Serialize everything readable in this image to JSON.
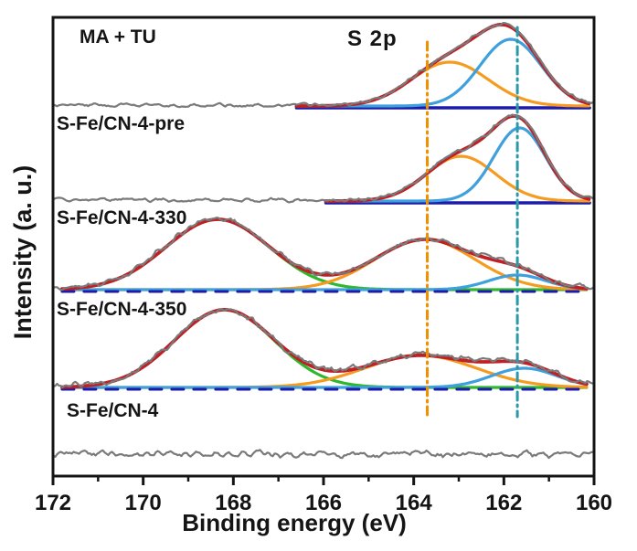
{
  "chart_data": {
    "type": "line",
    "title": "S 2p",
    "xlabel": "Binding energy (eV)",
    "ylabel": "Intensity (a. u.)",
    "x_axis": {
      "min": 160,
      "max": 172,
      "reversed": true,
      "unit": "eV",
      "major_ticks": [
        172,
        170,
        168,
        166,
        164,
        162,
        160
      ],
      "minor_ticks": [
        171,
        169,
        167,
        165,
        163,
        161
      ]
    },
    "y_axis": {
      "ticks": "none",
      "units": "arbitrary"
    },
    "guides": [
      {
        "position_ev": 163.7,
        "color": "#f09000",
        "style": "dash-dot",
        "y_top": 46,
        "y_bottom": 456
      },
      {
        "position_ev": 161.7,
        "color": "#2a9aa8",
        "style": "dash-dot",
        "y_top": 30,
        "y_bottom": 456
      }
    ],
    "palette": {
      "raw_data": "#7a7a7a",
      "fit_envelope": "#bf2026",
      "component_a": "#f59b20",
      "component_b": "#3ea0dc",
      "component_c": "#2eb82e",
      "baseline": "#1c1ca8",
      "frame": "#141414"
    },
    "series": [
      {
        "label": "MA + TU",
        "baseline_y": 117,
        "noise_amp": 2.0,
        "noise_seed": 7,
        "fit_range_ev": [
          166.6,
          160.1
        ],
        "baseline_style": "solid",
        "components": [
          {
            "role": "component_a",
            "center_ev": 163.2,
            "height": 48,
            "fwhm_ev": 2.0
          },
          {
            "role": "component_b",
            "center_ev": 161.85,
            "height": 73,
            "fwhm_ev": 1.6
          }
        ]
      },
      {
        "label": "S-Fe/CN-4-pre",
        "baseline_y": 221,
        "noise_amp": 2.0,
        "noise_seed": 13,
        "fit_range_ev": [
          165.95,
          160.1
        ],
        "baseline_style": "solid",
        "components": [
          {
            "role": "component_a",
            "center_ev": 162.95,
            "height": 49,
            "fwhm_ev": 1.8
          },
          {
            "role": "component_b",
            "center_ev": 161.65,
            "height": 80,
            "fwhm_ev": 1.35
          }
        ]
      },
      {
        "label": "S-Fe/CN-4-330",
        "baseline_y": 318,
        "noise_amp": 3.2,
        "noise_seed": 21,
        "fit_range_ev": [
          171.8,
          160.15
        ],
        "baseline_style": "dashed",
        "components": [
          {
            "role": "component_c",
            "center_ev": 168.35,
            "height": 77,
            "fwhm_ev": 2.7
          },
          {
            "role": "component_a",
            "center_ev": 163.75,
            "height": 55,
            "fwhm_ev": 2.6
          },
          {
            "role": "component_b",
            "center_ev": 161.7,
            "height": 16,
            "fwhm_ev": 1.5
          }
        ]
      },
      {
        "label": "S-Fe/CN-4-350",
        "baseline_y": 425,
        "noise_amp": 3.4,
        "noise_seed": 34,
        "fit_range_ev": [
          171.8,
          160.15
        ],
        "baseline_style": "dashed",
        "components": [
          {
            "role": "component_c",
            "center_ev": 168.2,
            "height": 85,
            "fwhm_ev": 2.6
          },
          {
            "role": "component_a",
            "center_ev": 163.85,
            "height": 35,
            "fwhm_ev": 2.9
          },
          {
            "role": "component_b",
            "center_ev": 161.55,
            "height": 21,
            "fwhm_ev": 1.7
          }
        ]
      },
      {
        "label": "S-Fe/CN-4",
        "baseline_y": 499,
        "noise_amp": 3.8,
        "noise_seed": 55,
        "fit_range_ev": null,
        "baseline_style": "none",
        "components": []
      }
    ]
  }
}
